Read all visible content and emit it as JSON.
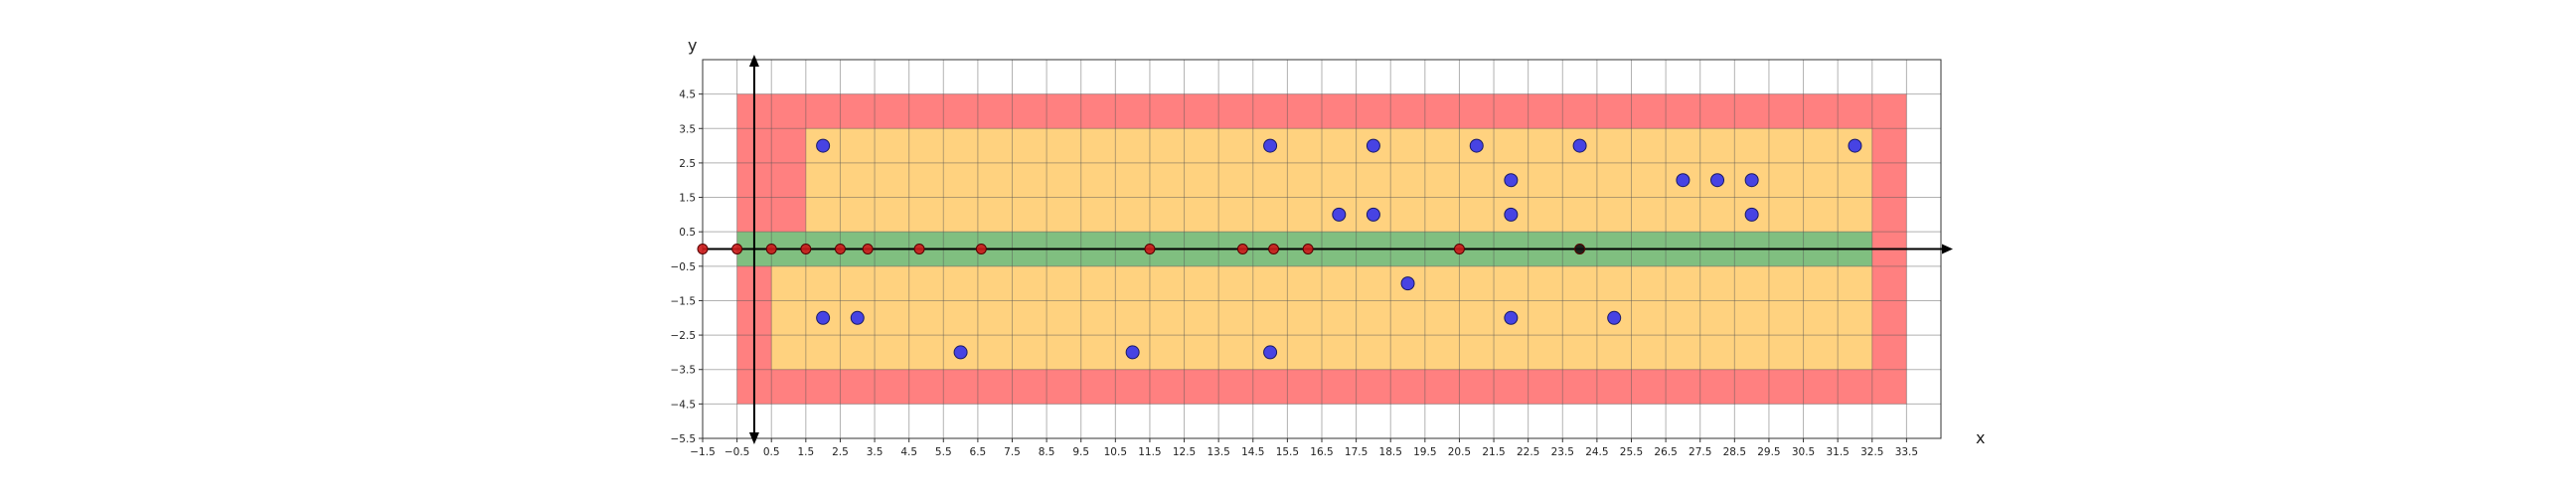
{
  "chart_data": {
    "type": "scatter",
    "title": "",
    "xlabel": "x",
    "ylabel": "y",
    "xlim": [
      -1.5,
      34.5
    ],
    "ylim": [
      -5.5,
      5.5
    ],
    "grid": true,
    "x_ticks": [
      "-1.5",
      "-0.5",
      "0.5",
      "1.5",
      "2.5",
      "3.5",
      "4.5",
      "5.5",
      "6.5",
      "7.5",
      "8.5",
      "9.5",
      "10.5",
      "11.5",
      "12.5",
      "13.5",
      "14.5",
      "15.5",
      "16.5",
      "17.5",
      "18.5",
      "19.5",
      "20.5",
      "21.5",
      "22.5",
      "23.5",
      "24.5",
      "25.5",
      "26.5",
      "27.5",
      "28.5",
      "29.5",
      "30.5",
      "31.5",
      "32.5",
      "33.5"
    ],
    "y_ticks": [
      "4.5",
      "3.5",
      "2.5",
      "1.5",
      "0.5",
      "-0.5",
      "-1.5",
      "-2.5",
      "-3.5",
      "-4.5",
      "-5.5"
    ],
    "regions": [
      {
        "color": "#ff8080",
        "x": [
          -0.5,
          33.5
        ],
        "y": [
          -4.5,
          4.5
        ]
      },
      {
        "color": "#ffd27f",
        "x": [
          1.5,
          32.5
        ],
        "y": [
          0.5,
          3.5
        ]
      },
      {
        "color": "#ffd27f",
        "x": [
          0.5,
          32.5
        ],
        "y": [
          -3.5,
          -0.5
        ]
      },
      {
        "color": "#80bf80",
        "x": [
          -0.5,
          32.5
        ],
        "y": [
          -0.5,
          0.5
        ]
      }
    ],
    "series": [
      {
        "color": "#3333ee",
        "points": [
          [
            2,
            3
          ],
          [
            15,
            3
          ],
          [
            18,
            3
          ],
          [
            21,
            3
          ],
          [
            24,
            3
          ],
          [
            32,
            3
          ],
          [
            22,
            2
          ],
          [
            27,
            2
          ],
          [
            28,
            2
          ],
          [
            29,
            2
          ],
          [
            17,
            1
          ],
          [
            18,
            1
          ],
          [
            22,
            1
          ],
          [
            29,
            1
          ],
          [
            19,
            -1
          ],
          [
            2,
            -2
          ],
          [
            3,
            -2
          ],
          [
            22,
            -2
          ],
          [
            25,
            -2
          ],
          [
            6,
            -3
          ],
          [
            11,
            -3
          ],
          [
            15,
            -3
          ]
        ]
      },
      {
        "color": "#cc1a1a",
        "points": [
          [
            -1.5,
            0
          ],
          [
            -0.5,
            0
          ],
          [
            0.5,
            0
          ],
          [
            1.5,
            0
          ],
          [
            2.5,
            0
          ],
          [
            3.3,
            0
          ],
          [
            4.8,
            0
          ],
          [
            6.6,
            0
          ],
          [
            11.5,
            0
          ],
          [
            14.2,
            0
          ],
          [
            15.1,
            0
          ],
          [
            16.1,
            0
          ],
          [
            20.5,
            0
          ]
        ]
      },
      {
        "color": "#111111",
        "points": [
          [
            24,
            0
          ]
        ]
      }
    ]
  }
}
